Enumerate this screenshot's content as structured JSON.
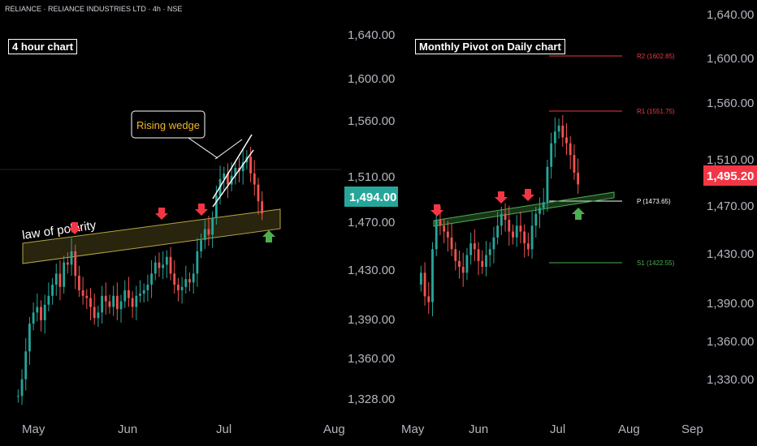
{
  "header": {
    "symbol": "RELIANCE · RELIANCE INDUSTRIES LTD · 4h · NSE"
  },
  "left_chart": {
    "title": "4 hour chart",
    "annotations": {
      "rising_wedge": "Rising wedge",
      "law_of_polarity": "law of polarity"
    },
    "price_axis": [
      "1,640.00",
      "1,600.00",
      "1,560.00",
      "1,510.00",
      "1,470.00",
      "1,430.00",
      "1,390.00",
      "1,360.00",
      "1,328.00"
    ],
    "time_axis": [
      "May",
      "Jun",
      "Jul",
      "Aug"
    ],
    "last_price": "1,494.00",
    "last_price_color": "#26a69a"
  },
  "right_chart": {
    "title": "Monthly Pivot on Daily chart",
    "pivots": {
      "r2": "R2 (1602.85)",
      "r1": "R1 (1551.75)",
      "p": "P (1473.65)",
      "s1": "S1 (1422.55)"
    },
    "price_axis": [
      "1,640.00",
      "1,600.00",
      "1,560.00",
      "1,510.00",
      "1,470.00",
      "1,430.00",
      "1,390.00",
      "1,360.00",
      "1,330.00"
    ],
    "time_axis": [
      "May",
      "Jun",
      "Jul",
      "Aug",
      "Sep"
    ],
    "last_price": "1,495.20",
    "last_price_color": "#f23645"
  },
  "colors": {
    "up": "#26a69a",
    "down": "#ef5350",
    "arrow_down": "#f23645",
    "arrow_up": "#4caf50",
    "zone": "#b5a642",
    "pivot_r": "#f23645",
    "pivot_s": "#4caf50"
  },
  "chart_data": [
    {
      "type": "candlestick",
      "title": "4 hour chart",
      "x_range": [
        "May",
        "Aug"
      ],
      "ylim": [
        1328,
        1640
      ],
      "last_price": 1494.0,
      "closes": [
        1330,
        1345,
        1370,
        1395,
        1405,
        1410,
        1398,
        1412,
        1420,
        1430,
        1440,
        1428,
        1450,
        1448,
        1460,
        1438,
        1425,
        1420,
        1418,
        1410,
        1400,
        1405,
        1420,
        1415,
        1410,
        1420,
        1408,
        1415,
        1425,
        1418,
        1410,
        1420,
        1422,
        1425,
        1430,
        1440,
        1450,
        1445,
        1448,
        1455,
        1440,
        1430,
        1425,
        1428,
        1435,
        1432,
        1440,
        1460,
        1470,
        1480,
        1475,
        1490,
        1510,
        1525,
        1530,
        1520,
        1528,
        1535,
        1532,
        1540,
        1545,
        1530,
        1520,
        1505,
        1494
      ]
    },
    {
      "type": "candlestick",
      "title": "Monthly Pivot on Daily chart",
      "x_range": [
        "May",
        "Sep"
      ],
      "ylim": [
        1330,
        1640
      ],
      "last_price": 1495.2,
      "pivots": {
        "R2": 1602.85,
        "R1": 1551.75,
        "P": 1473.65,
        "S1": 1422.55
      },
      "closes": [
        1420,
        1400,
        1395,
        1440,
        1465,
        1460,
        1455,
        1450,
        1440,
        1430,
        1425,
        1420,
        1435,
        1445,
        1440,
        1430,
        1425,
        1435,
        1440,
        1450,
        1460,
        1470,
        1465,
        1455,
        1450,
        1460,
        1455,
        1445,
        1440,
        1460,
        1470,
        1475,
        1480,
        1510,
        1530,
        1540,
        1545,
        1535,
        1530,
        1520,
        1505,
        1495
      ]
    }
  ]
}
